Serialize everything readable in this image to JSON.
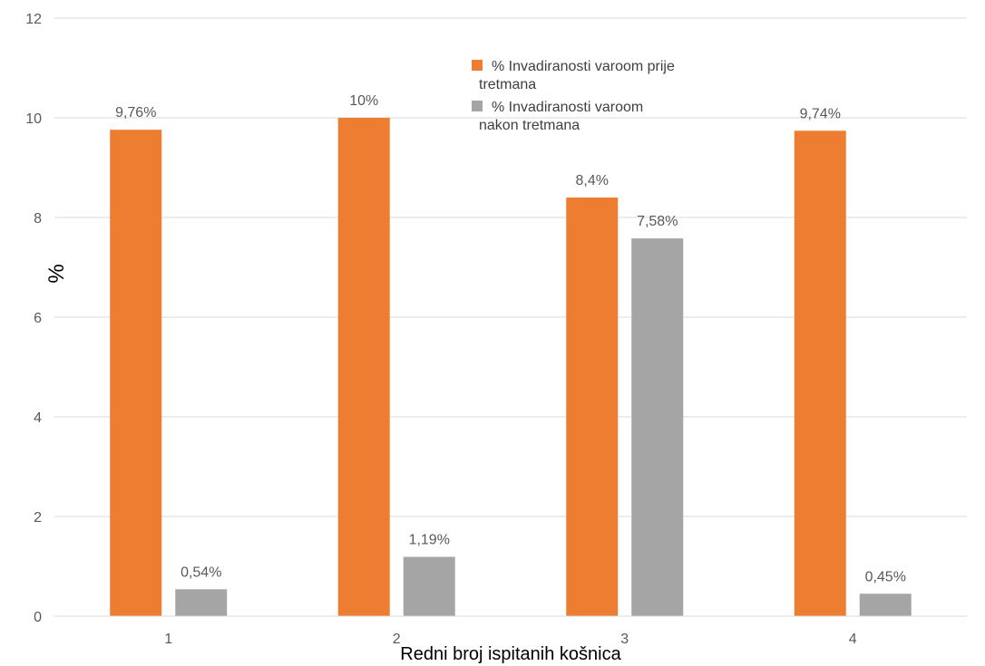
{
  "chart_data": {
    "type": "bar",
    "categories": [
      "1",
      "2",
      "3",
      "4"
    ],
    "series": [
      {
        "name": "% Invadiranosti varoom prije tretmana",
        "values": [
          9.76,
          10,
          8.4,
          9.74
        ],
        "labels": [
          "9,76%",
          "10%",
          "8,4%",
          "9,74%"
        ],
        "color": "#ED7D31"
      },
      {
        "name": "% Invadiranosti varoom nakon tretmana",
        "values": [
          0.54,
          1.19,
          7.58,
          0.45
        ],
        "labels": [
          "0,54%",
          "1,19%",
          "7,58%",
          "0,45%"
        ],
        "color": "#A5A5A5"
      }
    ],
    "title": "",
    "xlabel": "Redni broj ispitanih košnica",
    "ylabel": "%",
    "ylim": [
      0,
      12
    ],
    "yticks": [
      "0",
      "2",
      "4",
      "6",
      "8",
      "10",
      "12"
    ],
    "grid": true,
    "legend_position": "top-right"
  }
}
